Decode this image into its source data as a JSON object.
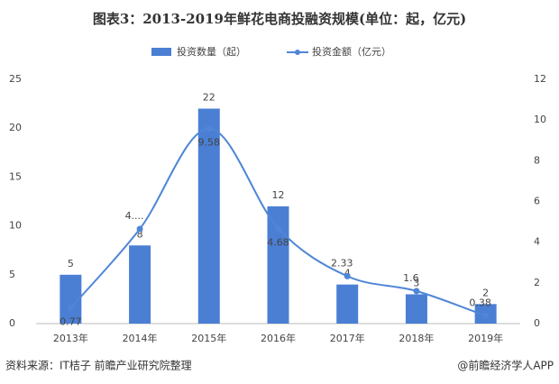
{
  "chart_data": {
    "type": "bar-line",
    "title": "图表3：2013-2019年鲜花电商投融资规模(单位：起，亿元)",
    "categories": [
      "2013年",
      "2014年",
      "2015年",
      "2016年",
      "2017年",
      "2018年",
      "2019年"
    ],
    "series": [
      {
        "name": "投资数量（起）",
        "type": "bar",
        "color": "#4a7fd4",
        "values": [
          5,
          8,
          22,
          12,
          4,
          3,
          2
        ]
      },
      {
        "name": "投资金额（亿元）",
        "type": "line",
        "axis": "y2",
        "color": "#4f86d6",
        "values": [
          0.77,
          4.65,
          9.58,
          4.68,
          2.33,
          1.6,
          0.38
        ],
        "value_labels": [
          "0.77",
          "4....",
          "9.58",
          "4.68",
          "2.33",
          "1.6",
          "0.38"
        ]
      }
    ],
    "ylim": [
      0,
      25
    ],
    "yticks": [
      0,
      5,
      10,
      15,
      20,
      25
    ],
    "y2lim": [
      0,
      12
    ],
    "y2ticks": [
      0,
      2,
      4,
      6,
      8,
      10,
      12
    ],
    "legend": "top",
    "source": "资料来源：IT桔子 前瞻产业研究院整理",
    "credit": "@前瞻经济学人APP"
  }
}
